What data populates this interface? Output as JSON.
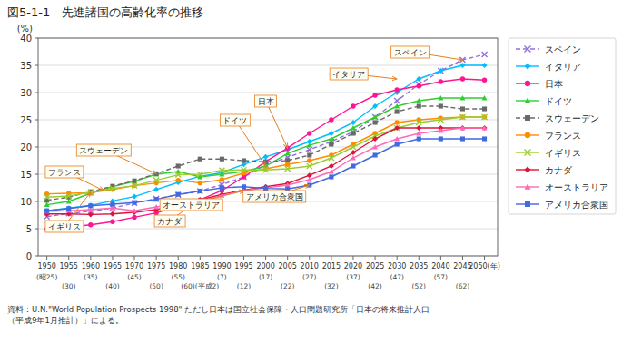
{
  "chart_data": {
    "type": "line",
    "title": "図5-1-1　先進諸国の高齢化率の推移",
    "y_label": "(%)",
    "note": "資料：U.N.\"World Population Prospects 1998\" ただし日本は国立社会保障・人口問題研究所「日本の将来推計人口\n（平成9年1月推計）」による。",
    "x": [
      1950,
      1955,
      1960,
      1965,
      1970,
      1975,
      1980,
      1985,
      1990,
      1995,
      2000,
      2005,
      2010,
      2015,
      2020,
      2025,
      2030,
      2035,
      2040,
      2045,
      2050
    ],
    "xlim": [
      1948,
      2053
    ],
    "xticks": [
      1950,
      1955,
      1960,
      1965,
      1970,
      1975,
      1980,
      1985,
      1990,
      1995,
      2000,
      2005,
      2010,
      2015,
      2020,
      2025,
      2030,
      2035,
      2040,
      2045,
      {
        "value": 2050,
        "label": "2050(年)"
      }
    ],
    "ylim": [
      0,
      40
    ],
    "yticks": [
      0,
      5,
      10,
      15,
      20,
      25,
      30,
      35,
      40
    ],
    "grid": true,
    "legend": "right",
    "series": [
      {
        "name": "スペイン",
        "color": "#9370DB",
        "marker": "x",
        "line_style": "dashed",
        "values": [
          7.2,
          7.8,
          8.2,
          8.8,
          9.7,
          10.5,
          11.2,
          11.9,
          13.1,
          14.5,
          16.7,
          18.1,
          19.5,
          21.0,
          22.8,
          25.5,
          28.5,
          31.5,
          34.0,
          36.0,
          37.0
        ]
      },
      {
        "name": "イタリア",
        "color": "#00BFFF",
        "marker": "diamond",
        "line_style": "solid",
        "values": [
          8.3,
          8.8,
          9.3,
          10.1,
          10.9,
          12.2,
          13.5,
          14.6,
          15.3,
          16.8,
          18.2,
          19.5,
          21.0,
          22.5,
          24.5,
          27.5,
          30.0,
          32.5,
          34.0,
          35.0,
          35.0
        ]
      },
      {
        "name": "日本",
        "color": "#FF1493",
        "marker": "circle",
        "line_style": "solid",
        "values": [
          4.9,
          5.3,
          5.7,
          6.3,
          7.1,
          7.9,
          9.1,
          10.3,
          12.0,
          14.5,
          17.3,
          19.8,
          22.5,
          25.0,
          27.5,
          29.5,
          30.5,
          31.2,
          32.0,
          32.5,
          32.3
        ]
      },
      {
        "name": "ドイツ",
        "color": "#32CD32",
        "marker": "triangle",
        "line_style": "solid",
        "values": [
          9.4,
          10.0,
          11.5,
          12.7,
          13.7,
          15.0,
          15.5,
          14.5,
          15.0,
          15.5,
          16.5,
          18.8,
          20.3,
          21.5,
          23.5,
          25.5,
          27.5,
          28.5,
          29.0,
          29.0,
          29.0
        ]
      },
      {
        "name": "スウェーデン",
        "color": "#696969",
        "marker": "square",
        "line_style": "dashed",
        "values": [
          10.2,
          10.8,
          11.8,
          12.8,
          13.8,
          15.1,
          16.5,
          17.8,
          17.8,
          17.5,
          17.3,
          17.5,
          18.5,
          20.5,
          22.5,
          24.5,
          26.5,
          27.5,
          27.5,
          27.0,
          27.0
        ]
      },
      {
        "name": "フランス",
        "color": "#FF8C00",
        "marker": "circle",
        "line_style": "solid",
        "values": [
          11.4,
          11.5,
          11.6,
          12.2,
          12.9,
          13.4,
          13.9,
          13.4,
          14.0,
          15.2,
          16.0,
          16.8,
          17.5,
          18.5,
          20.5,
          22.5,
          24.5,
          25.0,
          25.3,
          25.5,
          25.5
        ]
      },
      {
        "name": "イギリス",
        "color": "#9ACD32",
        "marker": "x",
        "line_style": "solid",
        "values": [
          10.8,
          11.0,
          11.7,
          12.4,
          12.9,
          13.9,
          14.9,
          15.0,
          15.7,
          15.8,
          15.8,
          16.0,
          16.5,
          18.0,
          20.0,
          22.0,
          23.5,
          24.5,
          25.0,
          25.5,
          25.5
        ]
      },
      {
        "name": "カナダ",
        "color": "#DC143C",
        "marker": "diamond",
        "line_style": "solid",
        "values": [
          7.7,
          7.7,
          7.6,
          7.7,
          8.0,
          8.5,
          9.4,
          10.3,
          11.3,
          12.1,
          12.7,
          13.3,
          14.8,
          16.5,
          19.0,
          21.5,
          23.5,
          23.5,
          23.5,
          23.5,
          23.5
        ]
      },
      {
        "name": "オーストラリア",
        "color": "#FF69B4",
        "marker": "triangle",
        "line_style": "solid",
        "values": [
          8.2,
          8.3,
          8.5,
          8.8,
          8.3,
          9.0,
          9.6,
          10.0,
          11.1,
          12.0,
          12.5,
          13.0,
          14.0,
          15.5,
          18.0,
          20.0,
          21.5,
          22.5,
          23.0,
          23.5,
          23.5
        ]
      },
      {
        "name": "アメリカ合衆国",
        "color": "#4169E1",
        "marker": "square",
        "line_style": "solid",
        "values": [
          8.3,
          8.7,
          9.2,
          9.5,
          9.8,
          10.4,
          11.3,
          11.9,
          12.5,
          12.7,
          12.4,
          12.3,
          13.0,
          14.5,
          16.5,
          18.5,
          20.5,
          21.5,
          21.5,
          21.5,
          21.5
        ]
      }
    ],
    "annotations": [
      {
        "text": "スペイン",
        "xy": [
          2045,
          36.0
        ],
        "xytext": [
          2033,
          37.5
        ]
      },
      {
        "text": "イタリア",
        "xy": [
          2030,
          32.5
        ],
        "xytext": [
          2019,
          33.5
        ]
      },
      {
        "text": "日本",
        "xy": [
          2005,
          19.8
        ],
        "xytext": [
          2000,
          28.5
        ]
      },
      {
        "text": "ドイツ",
        "xy": [
          2000,
          16.5
        ],
        "xytext": [
          1993,
          25.0
        ]
      },
      {
        "text": "スウェーデン",
        "xy": [
          1975,
          15.1
        ],
        "xytext": [
          1963,
          19.5
        ]
      },
      {
        "text": "フランス",
        "xy": [
          1963,
          12.0
        ],
        "xytext": [
          1954,
          15.5
        ]
      },
      {
        "text": "イギリス",
        "xy": [
          1960,
          11.7
        ],
        "xytext": [
          1954,
          5.5
        ]
      },
      {
        "text": "カナダ",
        "xy": [
          1985,
          10.3
        ],
        "xytext": [
          1978,
          6.5
        ]
      },
      {
        "text": "オーストラリア",
        "xy": [
          1995,
          12.0
        ],
        "xytext": [
          1983,
          9.5
        ]
      },
      {
        "text": "アメリカ合衆国",
        "xy": [
          2010,
          13.0
        ],
        "xytext": [
          2002,
          11.0
        ]
      },
      {
        "text": "(昭25)",
        "x": 1950
      },
      {
        "text": "(30)",
        "x": 1955
      },
      {
        "text": "(35)",
        "x": 1960
      },
      {
        "text": "(40)",
        "x": 1965
      },
      {
        "text": "(45)",
        "x": 1970
      },
      {
        "text": "(50)",
        "x": 1975
      },
      {
        "text": "(55)",
        "x": 1980
      },
      {
        "text": "(60)(平成2)",
        "x": 1985
      },
      {
        "text": "(7)",
        "x": 1990
      },
      {
        "text": "(12)",
        "x": 1995
      },
      {
        "text": "(17)",
        "x": 2000
      },
      {
        "text": "(22)",
        "x": 2005
      },
      {
        "text": "(27)",
        "x": 2010
      },
      {
        "text": "(32)",
        "x": 2015
      },
      {
        "text": "(37)",
        "x": 2020
      },
      {
        "text": "(42)",
        "x": 2025
      },
      {
        "text": "(47)",
        "x": 2030
      },
      {
        "text": "(52)",
        "x": 2035
      },
      {
        "text": "(57)",
        "x": 2040
      },
      {
        "text": "(62)",
        "x": 2045
      }
    ]
  }
}
